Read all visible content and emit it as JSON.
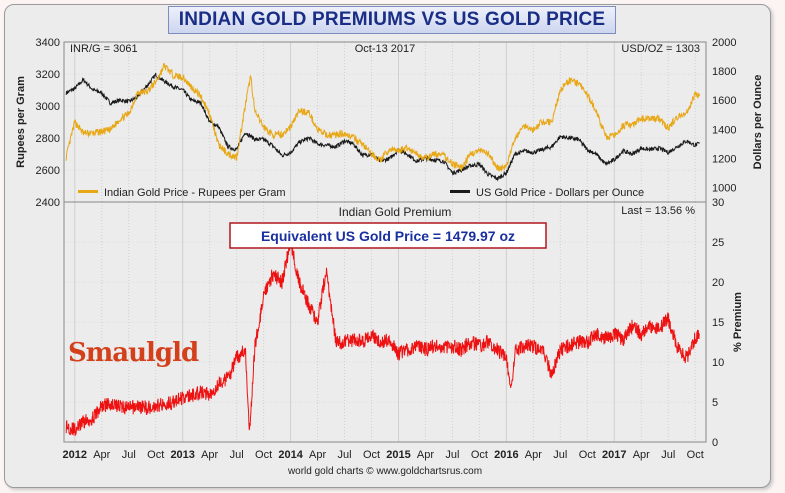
{
  "page": {
    "title": "INDIAN GOLD PREMIUMS VS US GOLD PRICE",
    "footer": "world gold charts © www.goldchartsrus.com",
    "watermark": "Smaulgld"
  },
  "colors": {
    "inr_series": "#e8a715",
    "usd_series": "#1a1a1a",
    "premium_series": "#ee1111",
    "title_text": "#1a2e86",
    "callout_text": "#1a2fa0",
    "callout_border": "#b0161c",
    "watermark": "#d4401b"
  },
  "chart_data": [
    {
      "type": "line",
      "title": "",
      "header_left": "INR/G = 3061",
      "header_center": "Oct-13  2017",
      "header_right": "USD/OZ = 1303",
      "ylabel_left": "Rupees per Gram",
      "ylabel_right": "Dollars per Ounce",
      "ylim_left": [
        2400,
        3400
      ],
      "ylim_right": [
        900,
        2000
      ],
      "yticks_left": [
        2400,
        2600,
        2800,
        3000,
        3200,
        3400
      ],
      "yticks_right": [
        1000,
        1200,
        1400,
        1600,
        1800,
        2000
      ],
      "grid": true,
      "legend_position": "bottom",
      "series": [
        {
          "name": "Indian Gold Price - Rupees per Gram",
          "axis": "left",
          "points": [
            [
              2011.92,
              2680
            ],
            [
              2012.0,
              2900
            ],
            [
              2012.08,
              2830
            ],
            [
              2012.17,
              2830
            ],
            [
              2012.25,
              2840
            ],
            [
              2012.33,
              2850
            ],
            [
              2012.42,
              2920
            ],
            [
              2012.5,
              2950
            ],
            [
              2012.58,
              3080
            ],
            [
              2012.67,
              3090
            ],
            [
              2012.75,
              3150
            ],
            [
              2012.83,
              3250
            ],
            [
              2012.92,
              3190
            ],
            [
              2013.0,
              3180
            ],
            [
              2013.08,
              3120
            ],
            [
              2013.17,
              3060
            ],
            [
              2013.25,
              2950
            ],
            [
              2013.33,
              2760
            ],
            [
              2013.42,
              2700
            ],
            [
              2013.5,
              2680
            ],
            [
              2013.58,
              3000
            ],
            [
              2013.63,
              3190
            ],
            [
              2013.67,
              2960
            ],
            [
              2013.75,
              2870
            ],
            [
              2013.83,
              2820
            ],
            [
              2013.92,
              2820
            ],
            [
              2014.0,
              2870
            ],
            [
              2014.08,
              2970
            ],
            [
              2014.17,
              2960
            ],
            [
              2014.25,
              2850
            ],
            [
              2014.33,
              2820
            ],
            [
              2014.42,
              2820
            ],
            [
              2014.5,
              2830
            ],
            [
              2014.58,
              2800
            ],
            [
              2014.67,
              2760
            ],
            [
              2014.75,
              2700
            ],
            [
              2014.83,
              2660
            ],
            [
              2014.92,
              2730
            ],
            [
              2015.0,
              2720
            ],
            [
              2015.08,
              2740
            ],
            [
              2015.17,
              2700
            ],
            [
              2015.25,
              2670
            ],
            [
              2015.33,
              2700
            ],
            [
              2015.42,
              2690
            ],
            [
              2015.5,
              2640
            ],
            [
              2015.58,
              2610
            ],
            [
              2015.67,
              2700
            ],
            [
              2015.75,
              2720
            ],
            [
              2015.83,
              2700
            ],
            [
              2015.92,
              2610
            ],
            [
              2016.0,
              2620
            ],
            [
              2016.08,
              2800
            ],
            [
              2016.17,
              2880
            ],
            [
              2016.25,
              2850
            ],
            [
              2016.33,
              2900
            ],
            [
              2016.42,
              2900
            ],
            [
              2016.5,
              3100
            ],
            [
              2016.58,
              3160
            ],
            [
              2016.67,
              3140
            ],
            [
              2016.75,
              3070
            ],
            [
              2016.83,
              2970
            ],
            [
              2016.92,
              2810
            ],
            [
              2017.0,
              2810
            ],
            [
              2017.08,
              2880
            ],
            [
              2017.17,
              2880
            ],
            [
              2017.25,
              2920
            ],
            [
              2017.33,
              2920
            ],
            [
              2017.42,
              2920
            ],
            [
              2017.5,
              2860
            ],
            [
              2017.58,
              2930
            ],
            [
              2017.67,
              2960
            ],
            [
              2017.75,
              3070
            ],
            [
              2017.79,
              3061
            ]
          ]
        },
        {
          "name": "US Gold Price - Dollars per Ounce",
          "axis": "right",
          "points": [
            [
              2011.92,
              1650
            ],
            [
              2012.0,
              1680
            ],
            [
              2012.08,
              1740
            ],
            [
              2012.17,
              1670
            ],
            [
              2012.25,
              1650
            ],
            [
              2012.33,
              1580
            ],
            [
              2012.42,
              1600
            ],
            [
              2012.5,
              1590
            ],
            [
              2012.58,
              1620
            ],
            [
              2012.67,
              1700
            ],
            [
              2012.75,
              1775
            ],
            [
              2012.83,
              1730
            ],
            [
              2012.92,
              1690
            ],
            [
              2013.0,
              1670
            ],
            [
              2013.08,
              1600
            ],
            [
              2013.17,
              1580
            ],
            [
              2013.25,
              1450
            ],
            [
              2013.33,
              1420
            ],
            [
              2013.42,
              1280
            ],
            [
              2013.5,
              1260
            ],
            [
              2013.58,
              1380
            ],
            [
              2013.67,
              1330
            ],
            [
              2013.75,
              1330
            ],
            [
              2013.83,
              1290
            ],
            [
              2013.92,
              1220
            ],
            [
              2014.0,
              1240
            ],
            [
              2014.08,
              1310
            ],
            [
              2014.17,
              1340
            ],
            [
              2014.25,
              1300
            ],
            [
              2014.33,
              1290
            ],
            [
              2014.42,
              1280
            ],
            [
              2014.5,
              1320
            ],
            [
              2014.58,
              1300
            ],
            [
              2014.67,
              1220
            ],
            [
              2014.75,
              1230
            ],
            [
              2014.83,
              1180
            ],
            [
              2014.92,
              1200
            ],
            [
              2015.0,
              1260
            ],
            [
              2015.08,
              1230
            ],
            [
              2015.17,
              1180
            ],
            [
              2015.25,
              1200
            ],
            [
              2015.33,
              1190
            ],
            [
              2015.42,
              1180
            ],
            [
              2015.5,
              1100
            ],
            [
              2015.58,
              1120
            ],
            [
              2015.67,
              1150
            ],
            [
              2015.75,
              1160
            ],
            [
              2015.83,
              1090
            ],
            [
              2015.92,
              1060
            ],
            [
              2016.0,
              1100
            ],
            [
              2016.08,
              1230
            ],
            [
              2016.17,
              1250
            ],
            [
              2016.25,
              1240
            ],
            [
              2016.33,
              1260
            ],
            [
              2016.42,
              1280
            ],
            [
              2016.5,
              1350
            ],
            [
              2016.58,
              1340
            ],
            [
              2016.67,
              1330
            ],
            [
              2016.75,
              1260
            ],
            [
              2016.83,
              1230
            ],
            [
              2016.92,
              1160
            ],
            [
              2017.0,
              1190
            ],
            [
              2017.08,
              1250
            ],
            [
              2017.17,
              1230
            ],
            [
              2017.25,
              1270
            ],
            [
              2017.33,
              1260
            ],
            [
              2017.42,
              1270
            ],
            [
              2017.5,
              1240
            ],
            [
              2017.58,
              1280
            ],
            [
              2017.67,
              1320
            ],
            [
              2017.75,
              1290
            ],
            [
              2017.79,
              1303
            ]
          ]
        }
      ]
    },
    {
      "type": "line",
      "title": "Indian Gold Premium",
      "annotation": "Equivalent US Gold Price = 1479.97 oz",
      "last_label": "Last = 13.56  %",
      "ylabel": "% Premium",
      "ylim": [
        0,
        30
      ],
      "yticks": [
        0,
        5,
        10,
        15,
        20,
        25,
        30
      ],
      "grid": true,
      "xlim": [
        2011.9,
        2017.85
      ],
      "x_tick_labels": [
        {
          "x": 2012.0,
          "label": "2012",
          "bold": true
        },
        {
          "x": 2012.25,
          "label": "Apr"
        },
        {
          "x": 2012.5,
          "label": "Jul"
        },
        {
          "x": 2012.75,
          "label": "Oct"
        },
        {
          "x": 2013.0,
          "label": "2013",
          "bold": true
        },
        {
          "x": 2013.25,
          "label": "Apr"
        },
        {
          "x": 2013.5,
          "label": "Jul"
        },
        {
          "x": 2013.75,
          "label": "Oct"
        },
        {
          "x": 2014.0,
          "label": "2014",
          "bold": true
        },
        {
          "x": 2014.25,
          "label": "Apr"
        },
        {
          "x": 2014.5,
          "label": "Jul"
        },
        {
          "x": 2014.75,
          "label": "Oct"
        },
        {
          "x": 2015.0,
          "label": "2015",
          "bold": true
        },
        {
          "x": 2015.25,
          "label": "Apr"
        },
        {
          "x": 2015.5,
          "label": "Jul"
        },
        {
          "x": 2015.75,
          "label": "Oct"
        },
        {
          "x": 2016.0,
          "label": "2016",
          "bold": true
        },
        {
          "x": 2016.25,
          "label": "Apr"
        },
        {
          "x": 2016.5,
          "label": "Jul"
        },
        {
          "x": 2016.75,
          "label": "Oct"
        },
        {
          "x": 2017.0,
          "label": "2017",
          "bold": true
        },
        {
          "x": 2017.25,
          "label": "Apr"
        },
        {
          "x": 2017.5,
          "label": "Jul"
        },
        {
          "x": 2017.75,
          "label": "Oct"
        }
      ],
      "series": [
        {
          "name": "",
          "points": [
            [
              2011.92,
              2
            ],
            [
              2012.0,
              1.5
            ],
            [
              2012.08,
              2.5
            ],
            [
              2012.17,
              3
            ],
            [
              2012.25,
              4.5
            ],
            [
              2012.33,
              4.8
            ],
            [
              2012.42,
              4.5
            ],
            [
              2012.5,
              4.2
            ],
            [
              2012.58,
              4.5
            ],
            [
              2012.67,
              4.3
            ],
            [
              2012.75,
              4.5
            ],
            [
              2012.83,
              4.8
            ],
            [
              2012.92,
              5.0
            ],
            [
              2013.0,
              5.5
            ],
            [
              2013.08,
              5.8
            ],
            [
              2013.17,
              6.2
            ],
            [
              2013.25,
              6.0
            ],
            [
              2013.33,
              7.2
            ],
            [
              2013.42,
              8.0
            ],
            [
              2013.5,
              10.5
            ],
            [
              2013.58,
              11.5
            ],
            [
              2013.62,
              1.5
            ],
            [
              2013.67,
              12
            ],
            [
              2013.75,
              18
            ],
            [
              2013.83,
              21
            ],
            [
              2013.92,
              20
            ],
            [
              2014.0,
              25
            ],
            [
              2014.08,
              20
            ],
            [
              2014.17,
              17
            ],
            [
              2014.25,
              15
            ],
            [
              2014.33,
              21.5
            ],
            [
              2014.42,
              12.5
            ],
            [
              2014.5,
              12.5
            ],
            [
              2014.58,
              12.8
            ],
            [
              2014.67,
              12.5
            ],
            [
              2014.75,
              13.5
            ],
            [
              2014.83,
              12.5
            ],
            [
              2014.92,
              12.8
            ],
            [
              2015.0,
              11.0
            ],
            [
              2015.08,
              11.5
            ],
            [
              2015.17,
              12
            ],
            [
              2015.25,
              11.5
            ],
            [
              2015.33,
              12.0
            ],
            [
              2015.42,
              11.8
            ],
            [
              2015.5,
              12.0
            ],
            [
              2015.58,
              11.5
            ],
            [
              2015.67,
              12.5
            ],
            [
              2015.75,
              12.0
            ],
            [
              2015.83,
              12.5
            ],
            [
              2015.92,
              11.5
            ],
            [
              2016.0,
              10.5
            ],
            [
              2016.04,
              6.0
            ],
            [
              2016.08,
              11.5
            ],
            [
              2016.17,
              12
            ],
            [
              2016.25,
              12
            ],
            [
              2016.33,
              11.5
            ],
            [
              2016.42,
              8.5
            ],
            [
              2016.5,
              11.5
            ],
            [
              2016.58,
              12.0
            ],
            [
              2016.67,
              12.5
            ],
            [
              2016.75,
              12.5
            ],
            [
              2016.83,
              13.5
            ],
            [
              2016.92,
              13.0
            ],
            [
              2017.0,
              13.5
            ],
            [
              2017.08,
              12.8
            ],
            [
              2017.17,
              14.5
            ],
            [
              2017.25,
              13.5
            ],
            [
              2017.33,
              14.5
            ],
            [
              2017.42,
              14.2
            ],
            [
              2017.5,
              15.5
            ],
            [
              2017.58,
              12
            ],
            [
              2017.67,
              10.5
            ],
            [
              2017.75,
              13
            ],
            [
              2017.79,
              13.56
            ]
          ]
        }
      ]
    }
  ]
}
